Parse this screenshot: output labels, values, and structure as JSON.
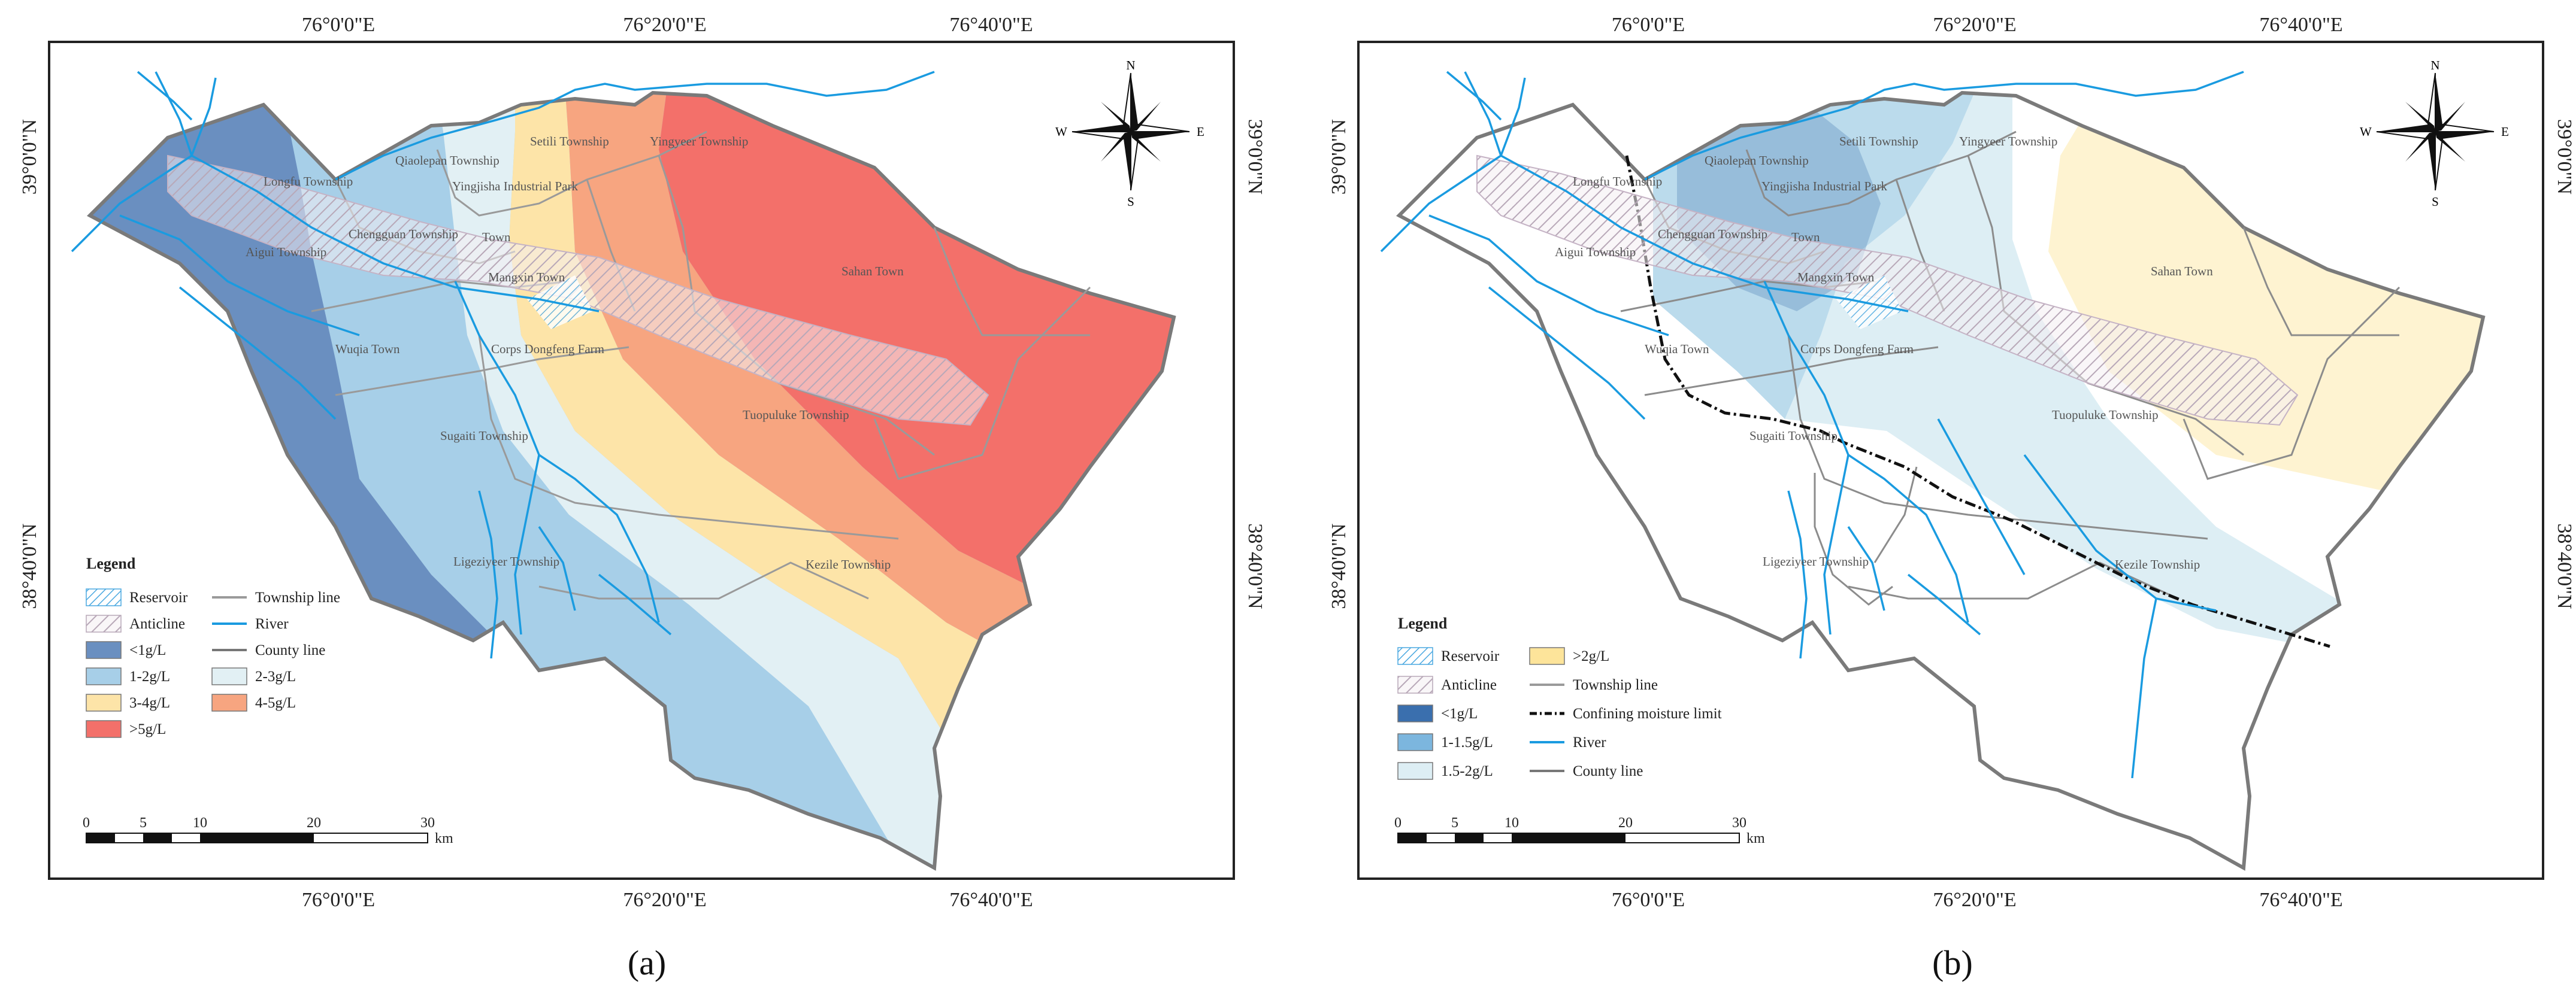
{
  "figure_title": "Groundwater mineralization and confining moisture maps",
  "panels": [
    {
      "caption": "(a)",
      "coords": {
        "top_lon": [
          "76°0'0\"E",
          "76°20'0\"E",
          "76°40'0\"E"
        ],
        "bottom_lon": [
          "76°0'0\"E",
          "76°20'0\"E",
          "76°40'0\"E"
        ],
        "right_lat": [
          "39°0'0\"N",
          "38°40'0\"N"
        ],
        "left_lat": [
          "39°0'0\"N",
          "38°40'0\"N"
        ]
      },
      "compass": {
        "n": "N",
        "s": "S",
        "e": "E",
        "w": "W"
      },
      "places": [
        "Longfu Township",
        "Qiaolepan Township",
        "Setili Township",
        "Yingyeer Township",
        "Yingjisha Industrial Park",
        "Chengguan Township",
        "Town",
        "Aigui Township",
        "Mangxin Town",
        "Sahan Town",
        "Wuqia Town",
        "Corps Dongfeng Farm",
        "Tuopuluke Township",
        "Sugaiti Township",
        "Kezile Township",
        "Ligeziyeer Township"
      ],
      "legend": {
        "title": "Legend",
        "items": [
          {
            "label": "Reservoir",
            "kind": "reservoir"
          },
          {
            "label": "Township line",
            "kind": "line",
            "color": "#9a9a9a"
          },
          {
            "label": "Anticline",
            "kind": "anticline"
          },
          {
            "label": "River",
            "kind": "line",
            "color": "#1a9be0"
          },
          {
            "label": "<1g/L",
            "kind": "box",
            "color": "#6a8fc0"
          },
          {
            "label": "County line",
            "kind": "line",
            "color": "#777777"
          },
          {
            "label": "1-2g/L",
            "kind": "box",
            "color": "#a7cfe8"
          },
          {
            "label": "2-3g/L",
            "kind": "box",
            "color": "#e2f0f4"
          },
          {
            "label": "3-4g/L",
            "kind": "box",
            "color": "#fde4a8"
          },
          {
            "label": "4-5g/L",
            "kind": "box",
            "color": "#f7a580"
          },
          {
            "label": ">5g/L",
            "kind": "box",
            "color": "#f3706a"
          }
        ]
      },
      "scale": {
        "ticks": [
          "0",
          "5",
          "10",
          "20",
          "30"
        ],
        "unit": "km"
      }
    },
    {
      "caption": "(b)",
      "coords": {
        "top_lon": [
          "76°0'0\"E",
          "76°20'0\"E",
          "76°40'0\"E"
        ],
        "bottom_lon": [
          "76°0'0\"E",
          "76°20'0\"E",
          "76°40'0\"E"
        ],
        "right_lat": [
          "39°0'0\"N",
          "38°40'0\"N"
        ],
        "left_lat": [
          "39°0'0\"N",
          "38°40'0\"N"
        ]
      },
      "compass": {
        "n": "N",
        "s": "S",
        "e": "E",
        "w": "W"
      },
      "places": [
        "Longfu Township",
        "Qiaolepan Township",
        "Setili Township",
        "Yingyeer Township",
        "Yingjisha Industrial Park",
        "Chengguan Township",
        "Town",
        "Aigui Township",
        "Mangxin Town",
        "Sahan Town",
        "Wuqia Town",
        "Corps Dongfeng Farm",
        "Tuopuluke Township",
        "Sugaiti Township",
        "Kezile Township",
        "Ligeziyeer Township"
      ],
      "legend": {
        "title": "Legend",
        "items": [
          {
            "label": "Reservoir",
            "kind": "reservoir"
          },
          {
            "label": ">2g/L",
            "kind": "box",
            "color": "#fde49a"
          },
          {
            "label": "Anticline",
            "kind": "anticline"
          },
          {
            "label": "Township line",
            "kind": "line",
            "color": "#9a9a9a"
          },
          {
            "label": "<1g/L",
            "kind": "box",
            "color": "#3a6fae"
          },
          {
            "label": "Confining moisture limit",
            "kind": "dashline",
            "color": "#111111"
          },
          {
            "label": "1-1.5g/L",
            "kind": "box",
            "color": "#7cb6de"
          },
          {
            "label": "River",
            "kind": "line",
            "color": "#1a9be0"
          },
          {
            "label": "1.5-2g/L",
            "kind": "box",
            "color": "#ddeef4"
          },
          {
            "label": "County line",
            "kind": "line",
            "color": "#777777"
          }
        ]
      },
      "scale": {
        "ticks": [
          "0",
          "5",
          "10",
          "20",
          "30"
        ],
        "unit": "km"
      }
    }
  ]
}
